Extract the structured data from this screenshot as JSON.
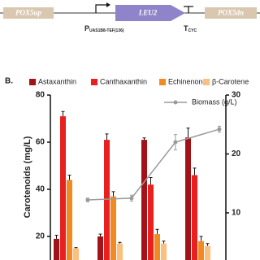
{
  "diagram": {
    "upstream": "POX5up",
    "gene": "LEU2",
    "downstream": "POX5dn",
    "promoter": {
      "main": "P",
      "sub": "UAS1B8-TEF(136)"
    },
    "terminator": {
      "main": "T",
      "sub": "CYC"
    }
  },
  "panel_label": "B.",
  "chart_data": {
    "type": "bar",
    "y_label": "Carotenoids (mg/L)",
    "categories": [
      null,
      null,
      null,
      null
    ],
    "series": [
      {
        "name": "Astaxanthin",
        "color": "#a31217",
        "values": [
          19,
          20,
          61,
          62
        ],
        "errors": [
          1.5,
          1,
          0.8,
          4
        ]
      },
      {
        "name": "Canthaxanthin",
        "color": "#e8201f",
        "values": [
          71,
          61,
          42,
          46
        ],
        "errors": [
          2,
          2.5,
          3,
          3
        ]
      },
      {
        "name": "Echinenone",
        "color": "#f28a24",
        "values": [
          44,
          37,
          21,
          18
        ],
        "errors": [
          2,
          2,
          2,
          2
        ]
      },
      {
        "name": "β-Carotene",
        "color": "#fbc07f",
        "values": [
          15,
          17,
          17,
          16
        ],
        "errors": [
          0.3,
          0.5,
          1,
          1
        ]
      },
      {
        "name": "Biomass (g/L)",
        "color": "#9a9a9a",
        "axis": "y2",
        "type": "line",
        "values": [
          12.2,
          12.5,
          22,
          24.2
        ],
        "errors": [
          0.3,
          0.5,
          1.3,
          0.5
        ]
      }
    ],
    "ylim": [
      10,
      80
    ],
    "yticks": [
      20,
      40,
      60,
      80
    ],
    "y2lim": [
      2,
      30
    ],
    "y2ticks": [
      10,
      20,
      30
    ]
  }
}
